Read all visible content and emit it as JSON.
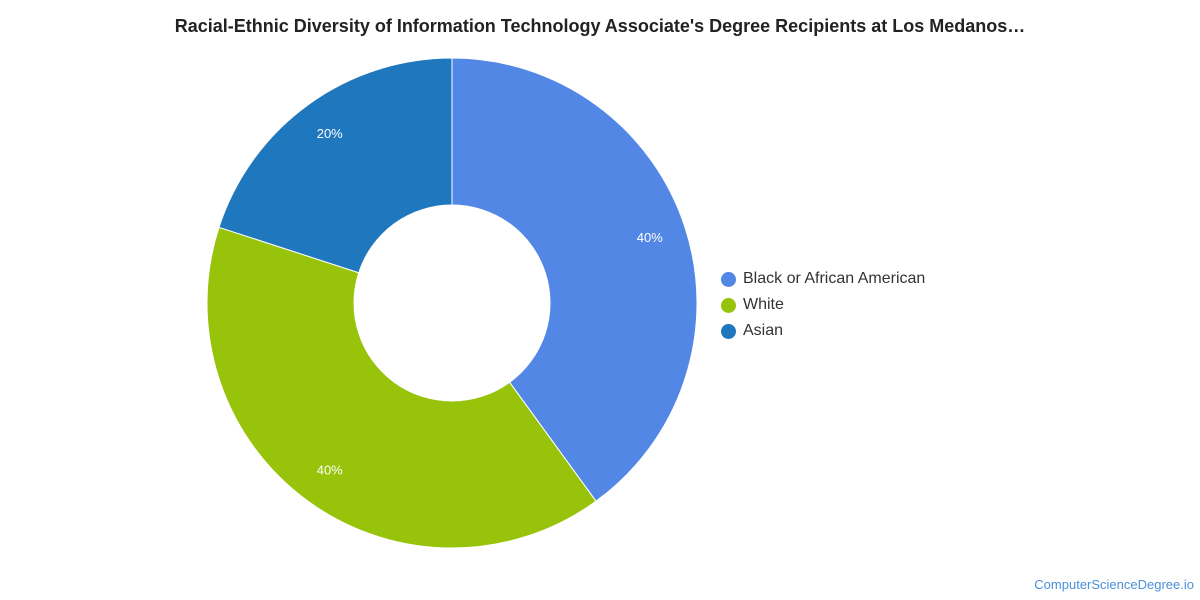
{
  "chart_data": {
    "type": "pie",
    "title": "Racial-Ethnic Diversity of Information Technology Associate's Degree Recipients at Los Medanos…",
    "donut": true,
    "legend_position": "right",
    "slices": [
      {
        "label": "Black or African American",
        "value": 40,
        "display": "40%",
        "color": "#5387e5"
      },
      {
        "label": "White",
        "value": 40,
        "display": "40%",
        "color": "#97c30a"
      },
      {
        "label": "Asian",
        "value": 20,
        "display": "20%",
        "color": "#1f77be"
      }
    ]
  },
  "watermark": "ComputerScienceDegree.io"
}
